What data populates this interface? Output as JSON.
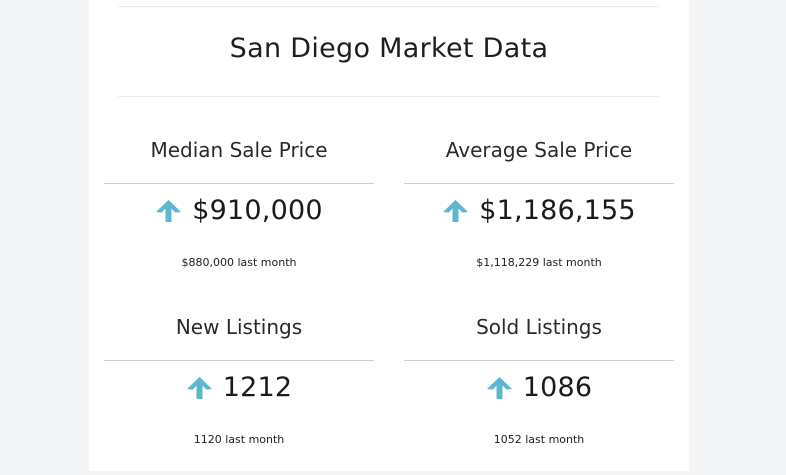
{
  "page_title": "San Diego Market Data",
  "accent_color": "#5bb8cf",
  "stats": [
    {
      "label": "Median Sale Price",
      "value": "$910,000",
      "previous": "$880,000 last month",
      "trend_icon": "arrow-up-icon"
    },
    {
      "label": "Average Sale Price",
      "value": "$1,186,155",
      "previous": "$1,118,229 last month",
      "trend_icon": "arrow-up-icon"
    },
    {
      "label": "New Listings",
      "value": "1212",
      "previous": "1120 last month",
      "trend_icon": "arrow-up-icon"
    },
    {
      "label": "Sold Listings",
      "value": "1086",
      "previous": "1052 last month",
      "trend_icon": "arrow-up-icon"
    }
  ]
}
